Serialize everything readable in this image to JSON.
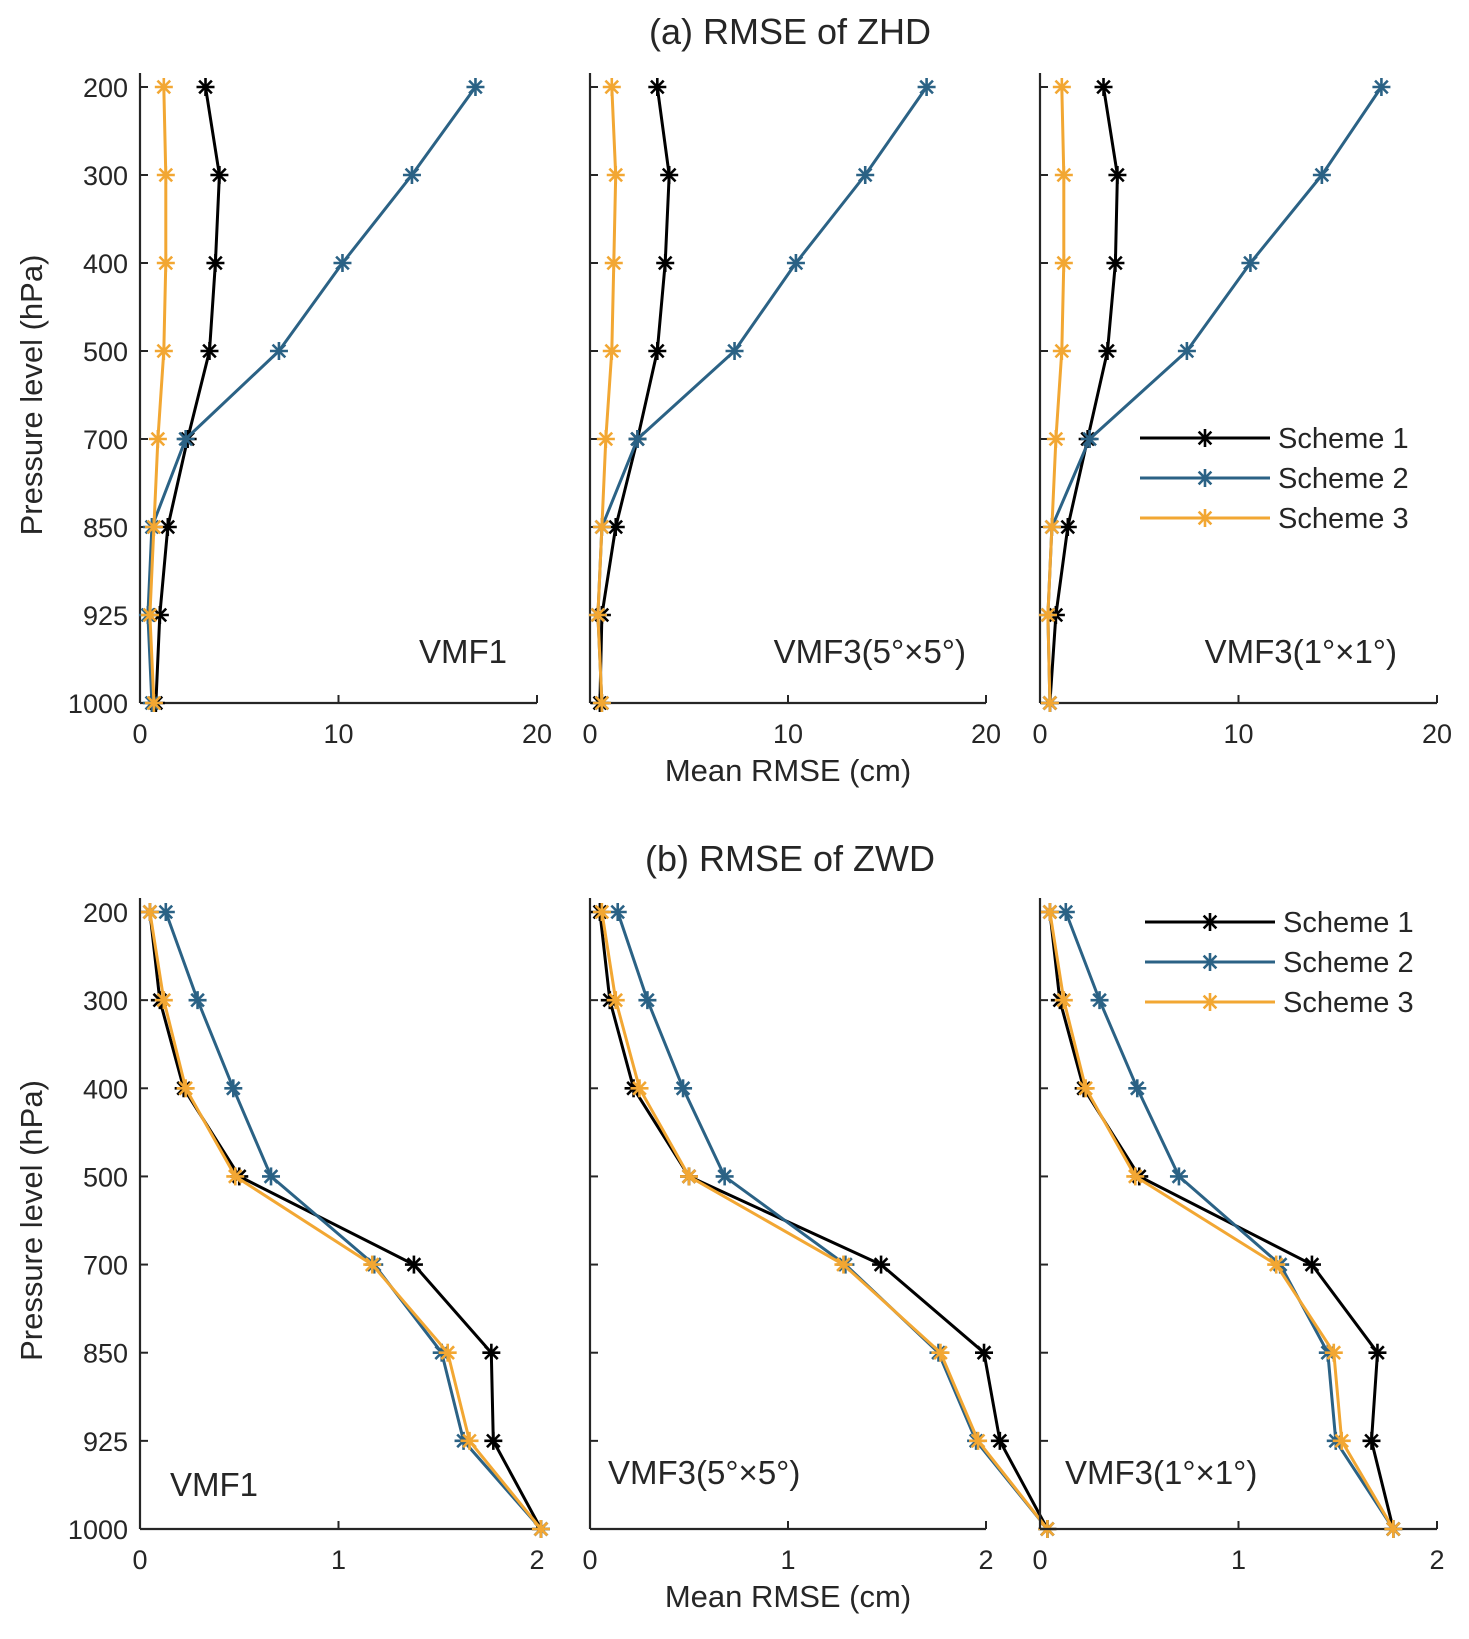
{
  "figure": {
    "title_a": "(a) RMSE of ZHD",
    "title_b": "(b) RMSE of ZWD"
  },
  "colors": {
    "scheme1": "#000000",
    "scheme2": "#2b6285",
    "scheme3": "#f2a733",
    "axis": "#262626"
  },
  "chart_data": [
    {
      "type": "line",
      "title": "(a) RMSE of ZHD",
      "panel_label": "VMF1",
      "xlabel": "Mean RMSE (cm)",
      "ylabel": "Pressure level (hPa)",
      "xlim": [
        0,
        20
      ],
      "xticks": [
        "0",
        "10",
        "20"
      ],
      "y_levels": [
        "200",
        "300",
        "400",
        "500",
        "700",
        "850",
        "925",
        "1000"
      ],
      "legend": "none",
      "series": [
        {
          "name": "Scheme 1",
          "values": [
            3.3,
            4.0,
            3.8,
            3.5,
            2.4,
            1.4,
            1.0,
            0.8
          ]
        },
        {
          "name": "Scheme 2",
          "values": [
            16.9,
            13.7,
            10.2,
            7.0,
            2.3,
            0.6,
            0.4,
            0.6
          ]
        },
        {
          "name": "Scheme 3",
          "values": [
            1.2,
            1.3,
            1.3,
            1.2,
            0.9,
            0.7,
            0.5,
            0.7
          ]
        }
      ]
    },
    {
      "type": "line",
      "title": "(a) RMSE of ZHD",
      "panel_label": "VMF3(5°×5°)",
      "xlabel": "Mean RMSE (cm)",
      "ylabel": "",
      "xlim": [
        0,
        20
      ],
      "xticks": [
        "0",
        "10",
        "20"
      ],
      "y_levels": [
        "200",
        "300",
        "400",
        "500",
        "700",
        "850",
        "925",
        "1000"
      ],
      "legend": "none",
      "series": [
        {
          "name": "Scheme 1",
          "values": [
            3.4,
            4.0,
            3.8,
            3.4,
            2.4,
            1.3,
            0.6,
            0.5
          ]
        },
        {
          "name": "Scheme 2",
          "values": [
            17.0,
            13.9,
            10.4,
            7.3,
            2.4,
            0.6,
            0.4,
            0.6
          ]
        },
        {
          "name": "Scheme 3",
          "values": [
            1.1,
            1.3,
            1.2,
            1.1,
            0.8,
            0.6,
            0.4,
            0.6
          ]
        }
      ]
    },
    {
      "type": "line",
      "title": "(a) RMSE of ZHD",
      "panel_label": "VMF3(1°×1°)",
      "xlabel": "Mean RMSE (cm)",
      "ylabel": "",
      "xlim": [
        0,
        20
      ],
      "xticks": [
        "0",
        "10",
        "20"
      ],
      "y_levels": [
        "200",
        "300",
        "400",
        "500",
        "700",
        "850",
        "925",
        "1000"
      ],
      "legend": "right",
      "series": [
        {
          "name": "Scheme 1",
          "values": [
            3.2,
            3.9,
            3.8,
            3.4,
            2.4,
            1.4,
            0.8,
            0.5
          ]
        },
        {
          "name": "Scheme 2",
          "values": [
            17.2,
            14.2,
            10.6,
            7.4,
            2.5,
            0.6,
            0.4,
            0.5
          ]
        },
        {
          "name": "Scheme 3",
          "values": [
            1.1,
            1.2,
            1.2,
            1.1,
            0.8,
            0.6,
            0.4,
            0.5
          ]
        }
      ]
    },
    {
      "type": "line",
      "title": "(b) RMSE of ZWD",
      "panel_label": "VMF1",
      "xlabel": "Mean RMSE (cm)",
      "ylabel": "Pressure level (hPa)",
      "xlim": [
        0,
        2
      ],
      "xticks": [
        "0",
        "1",
        "2"
      ],
      "y_levels": [
        "200",
        "300",
        "400",
        "500",
        "700",
        "850",
        "925",
        "1000"
      ],
      "legend": "none",
      "series": [
        {
          "name": "Scheme 1",
          "values": [
            0.05,
            0.1,
            0.22,
            0.5,
            1.38,
            1.77,
            1.78,
            2.02
          ]
        },
        {
          "name": "Scheme 2",
          "values": [
            0.13,
            0.29,
            0.47,
            0.66,
            1.18,
            1.52,
            1.63,
            2.02
          ]
        },
        {
          "name": "Scheme 3",
          "values": [
            0.05,
            0.12,
            0.23,
            0.48,
            1.17,
            1.55,
            1.66,
            2.02
          ]
        }
      ]
    },
    {
      "type": "line",
      "title": "(b) RMSE of ZWD",
      "panel_label": "VMF3(5°×5°)",
      "xlabel": "Mean RMSE (cm)",
      "ylabel": "",
      "xlim": [
        0,
        2
      ],
      "xticks": [
        "0",
        "1",
        "2"
      ],
      "y_levels": [
        "200",
        "300",
        "400",
        "500",
        "700",
        "850",
        "925",
        "1000"
      ],
      "legend": "none",
      "series": [
        {
          "name": "Scheme 1",
          "values": [
            0.05,
            0.1,
            0.22,
            0.5,
            1.47,
            1.99,
            2.07,
            2.31
          ]
        },
        {
          "name": "Scheme 2",
          "values": [
            0.14,
            0.29,
            0.47,
            0.68,
            1.29,
            1.76,
            1.95,
            2.31
          ]
        },
        {
          "name": "Scheme 3",
          "values": [
            0.06,
            0.13,
            0.25,
            0.5,
            1.28,
            1.77,
            1.96,
            2.31
          ]
        }
      ]
    },
    {
      "type": "line",
      "title": "(b) RMSE of ZWD",
      "panel_label": "VMF3(1°×1°)",
      "xlabel": "Mean RMSE (cm)",
      "ylabel": "",
      "xlim": [
        0,
        2
      ],
      "xticks": [
        "0",
        "1",
        "2"
      ],
      "y_levels": [
        "200",
        "300",
        "400",
        "500",
        "700",
        "850",
        "925",
        "1000"
      ],
      "legend": "top-right",
      "series": [
        {
          "name": "Scheme 1",
          "values": [
            0.05,
            0.1,
            0.22,
            0.5,
            1.37,
            1.7,
            1.67,
            1.78
          ]
        },
        {
          "name": "Scheme 2",
          "values": [
            0.13,
            0.3,
            0.49,
            0.7,
            1.21,
            1.45,
            1.49,
            1.78
          ]
        },
        {
          "name": "Scheme 3",
          "values": [
            0.05,
            0.12,
            0.23,
            0.48,
            1.19,
            1.48,
            1.52,
            1.78
          ]
        }
      ]
    }
  ]
}
